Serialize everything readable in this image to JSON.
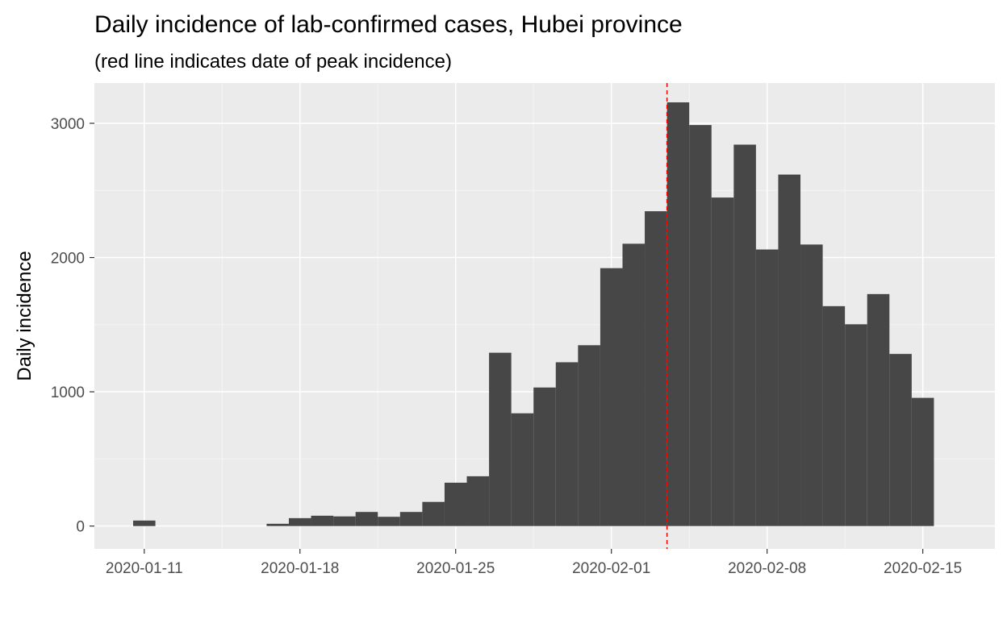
{
  "chart_data": {
    "type": "bar",
    "title": "Daily incidence of lab-confirmed cases, Hubei province",
    "subtitle": "(red line indicates date of peak incidence)",
    "xlabel": "",
    "ylabel": "Daily incidence",
    "xlim": [
      "2020-01-11",
      "2020-02-16"
    ],
    "ylim": [
      -170,
      3300
    ],
    "x_ticks": [
      "2020-01-11",
      "2020-01-18",
      "2020-01-25",
      "2020-02-01",
      "2020-02-08",
      "2020-02-15"
    ],
    "y_ticks": [
      0,
      1000,
      2000,
      3000
    ],
    "grid": true,
    "legend": "none",
    "peak_date": "2020-02-04",
    "dates": [
      "2020-01-11",
      "2020-01-12",
      "2020-01-13",
      "2020-01-14",
      "2020-01-15",
      "2020-01-16",
      "2020-01-17",
      "2020-01-18",
      "2020-01-19",
      "2020-01-20",
      "2020-01-21",
      "2020-01-22",
      "2020-01-23",
      "2020-01-24",
      "2020-01-25",
      "2020-01-26",
      "2020-01-27",
      "2020-01-28",
      "2020-01-29",
      "2020-01-30",
      "2020-01-31",
      "2020-02-01",
      "2020-02-02",
      "2020-02-03",
      "2020-02-04",
      "2020-02-05",
      "2020-02-06",
      "2020-02-07",
      "2020-02-08",
      "2020-02-09",
      "2020-02-10",
      "2020-02-11",
      "2020-02-12",
      "2020-02-13",
      "2020-02-14",
      "2020-02-15"
    ],
    "values": [
      41,
      0,
      0,
      0,
      0,
      0,
      17,
      59,
      77,
      72,
      105,
      69,
      105,
      180,
      323,
      371,
      1291,
      840,
      1032,
      1220,
      1347,
      1921,
      2103,
      2345,
      3156,
      2987,
      2447,
      2841,
      2060,
      2618,
      2097,
      1638,
      1503,
      1728,
      1282,
      955
    ],
    "colors": {
      "bar": "#474747",
      "panel": "#ebebeb",
      "grid_major": "#ffffff",
      "grid_minor": "#f5f5f5",
      "peak_line": "#ff0000"
    }
  }
}
